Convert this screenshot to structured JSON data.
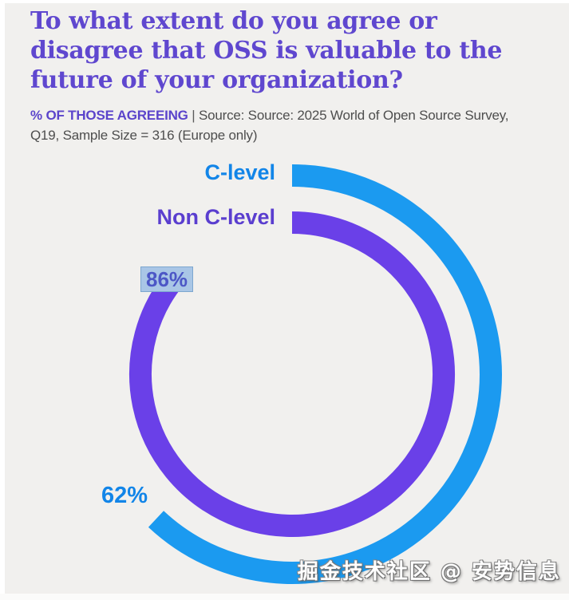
{
  "header": {
    "title": "To what extent do you agree or disagree that OSS is valuable to the future of your organization?",
    "title_color": "#5f47cf",
    "kicker": "% OF THOSE AGREEING",
    "kicker_color": "#5b44cb",
    "separator": " | ",
    "source": "Source: Source: 2025 World of Open Source Survey, Q19, Sample Size = 316 (Europe only)",
    "source_color": "#4e4e4e"
  },
  "chart_data": {
    "type": "radial_bar",
    "unit": "%",
    "max": 100,
    "start_angle_deg": 0,
    "direction": "clockwise",
    "legend_position": "left-of-arc-start",
    "categories": [
      "C-level",
      "Non C-level"
    ],
    "values": [
      62,
      86
    ],
    "series": [
      {
        "name": "C-level",
        "value": 62,
        "value_label": "62%",
        "ring": "outer",
        "arc_color": "#1b9af0",
        "label_color": "#1285e8",
        "value_label_selected": false
      },
      {
        "name": "Non C-level",
        "value": 86,
        "value_label": "86%",
        "ring": "inner",
        "arc_color": "#6a40e8",
        "label_color": "#5a3ecf",
        "value_label_selected": true
      }
    ],
    "selection_highlight": {
      "background": "#a9c6e6",
      "border": "#7da7cf",
      "text_color": "#4c57c6"
    },
    "background_color": "#f1f0ee"
  },
  "watermark": {
    "text": "掘金技术社区 @ 安势信息"
  }
}
